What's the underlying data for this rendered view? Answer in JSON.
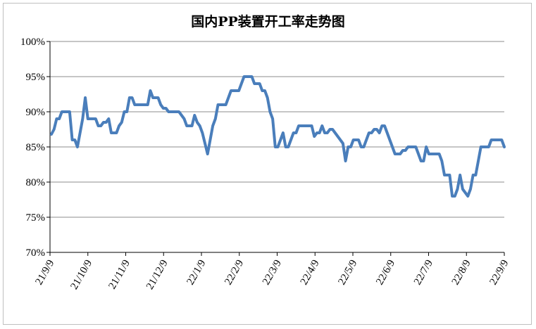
{
  "chart_data": {
    "type": "line",
    "title": "国内PP装置开工率走势图",
    "xlabel": "",
    "ylabel": "",
    "ylim": [
      70,
      100
    ],
    "y_ticks": [
      "70%",
      "75%",
      "80%",
      "85%",
      "90%",
      "95%",
      "100%"
    ],
    "y_tick_values": [
      70,
      75,
      80,
      85,
      90,
      95,
      100
    ],
    "x_ticks": [
      "21/9/9",
      "21/10/9",
      "21/11/9",
      "21/12/9",
      "22/1/9",
      "22/2/9",
      "22/3/9",
      "22/4/9",
      "22/5/9",
      "22/6/9",
      "22/7/9",
      "22/8/9",
      "22/9/9"
    ],
    "grid": "horizontal",
    "legend": "none",
    "series": [
      {
        "color": "#4a7ebb",
        "values": [
          86.8,
          87.5,
          89,
          89,
          90,
          90,
          90,
          90,
          86,
          86,
          85,
          87,
          89,
          92,
          89,
          89,
          89,
          89,
          88,
          88,
          88.5,
          88.5,
          89,
          87,
          87,
          87,
          88,
          88.5,
          90,
          90,
          92,
          92,
          91,
          91,
          91,
          91,
          91,
          91,
          93,
          92,
          92,
          92,
          91,
          90.5,
          90.5,
          90,
          90,
          90,
          90,
          90,
          89.5,
          89,
          88,
          88,
          88,
          89.5,
          88.5,
          88,
          87,
          85.5,
          84,
          86,
          88,
          89,
          91,
          91,
          91,
          91,
          92,
          93,
          93,
          93,
          93,
          94,
          95,
          95,
          95,
          95,
          94,
          94,
          94,
          93,
          93,
          92,
          90,
          89,
          85,
          85,
          86,
          87,
          85,
          85,
          86,
          87,
          87,
          88,
          88,
          88,
          88,
          88,
          88,
          86.5,
          87,
          87,
          88,
          87,
          87,
          87.5,
          87.5,
          87,
          86.5,
          86,
          85.5,
          83,
          85,
          85,
          86,
          86,
          86,
          85,
          85,
          86,
          87,
          87,
          87.5,
          87.5,
          87,
          88,
          88,
          87,
          86,
          85,
          84,
          84,
          84,
          84.5,
          84.5,
          85,
          85,
          85,
          85,
          84,
          83,
          83,
          85,
          84,
          84,
          84,
          84,
          84,
          83,
          81,
          81,
          81,
          78,
          78,
          79,
          81,
          79,
          78.5,
          78,
          79,
          81,
          81,
          83,
          85,
          85,
          85,
          85,
          86,
          86,
          86,
          86,
          86,
          85
        ]
      }
    ]
  }
}
